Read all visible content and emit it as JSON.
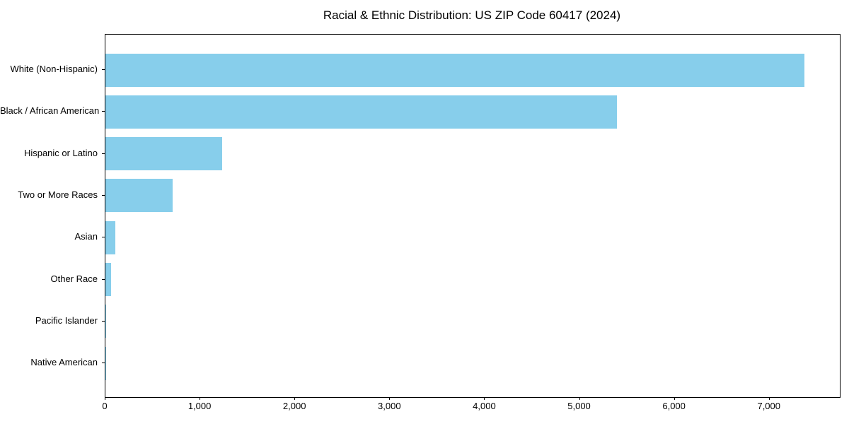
{
  "chart_data": {
    "type": "bar",
    "orientation": "horizontal",
    "title": "Racial & Ethnic Distribution: US ZIP Code 60417 (2024)",
    "xlabel": "",
    "ylabel": "",
    "categories": [
      "White (Non-Hispanic)",
      "Black / African American",
      "Hispanic or Latino",
      "Two or More Races",
      "Asian",
      "Other Race",
      "Pacific Islander",
      "Native American"
    ],
    "values": [
      7370,
      5390,
      1230,
      710,
      105,
      60,
      10,
      2
    ],
    "xlim": [
      0,
      7740
    ],
    "xtick_values": [
      0,
      1000,
      2000,
      3000,
      4000,
      5000,
      6000,
      7000
    ],
    "xtick_labels": [
      "0",
      "1,000",
      "2,000",
      "3,000",
      "4,000",
      "5,000",
      "6,000",
      "7,000"
    ],
    "bar_color": "#87CEEB",
    "background_color": "#FFFFFF",
    "text_color": "#000000",
    "grid": false,
    "legend": null
  }
}
